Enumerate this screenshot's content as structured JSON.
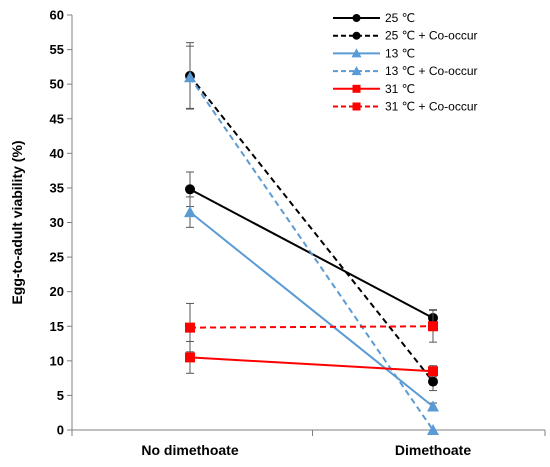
{
  "chart_data": {
    "type": "line",
    "title": "",
    "xlabel": "",
    "ylabel": "Egg-to-adult viability (%)",
    "categories": [
      "No dimethoate",
      "Dimethoate"
    ],
    "ylim": [
      0,
      60
    ],
    "yticks": [
      0,
      5,
      10,
      15,
      20,
      25,
      30,
      35,
      40,
      45,
      50,
      55,
      60
    ],
    "grid": false,
    "legend_position": "top-right",
    "series": [
      {
        "name": "25 ℃",
        "values": [
          34.8,
          16.2
        ],
        "error": [
          2.5,
          1.2
        ],
        "color": "#000000",
        "dash": "solid",
        "marker": "circle"
      },
      {
        "name": "25 ℃ + Co-occur",
        "values": [
          51.2,
          7.0
        ],
        "error": [
          4.8,
          1.3
        ],
        "color": "#000000",
        "dash": "dashed",
        "marker": "circle"
      },
      {
        "name": "13 ℃",
        "values": [
          31.5,
          3.4
        ],
        "error": [
          2.2,
          0.5
        ],
        "color": "#5b9bd5",
        "dash": "solid",
        "marker": "triangle"
      },
      {
        "name": "13 ℃ + Co-occur",
        "values": [
          51.0,
          0.0
        ],
        "error": [
          4.5,
          0.0
        ],
        "color": "#5b9bd5",
        "dash": "dashed",
        "marker": "triangle"
      },
      {
        "name": "31 ℃",
        "values": [
          10.5,
          8.5
        ],
        "error": [
          2.3,
          0.8
        ],
        "color": "#ff0000",
        "dash": "solid",
        "marker": "square"
      },
      {
        "name": "31 ℃ + Co-occur",
        "values": [
          14.8,
          15.0
        ],
        "error": [
          3.5,
          2.3
        ],
        "color": "#ff0000",
        "dash": "dashed",
        "marker": "square"
      }
    ]
  }
}
